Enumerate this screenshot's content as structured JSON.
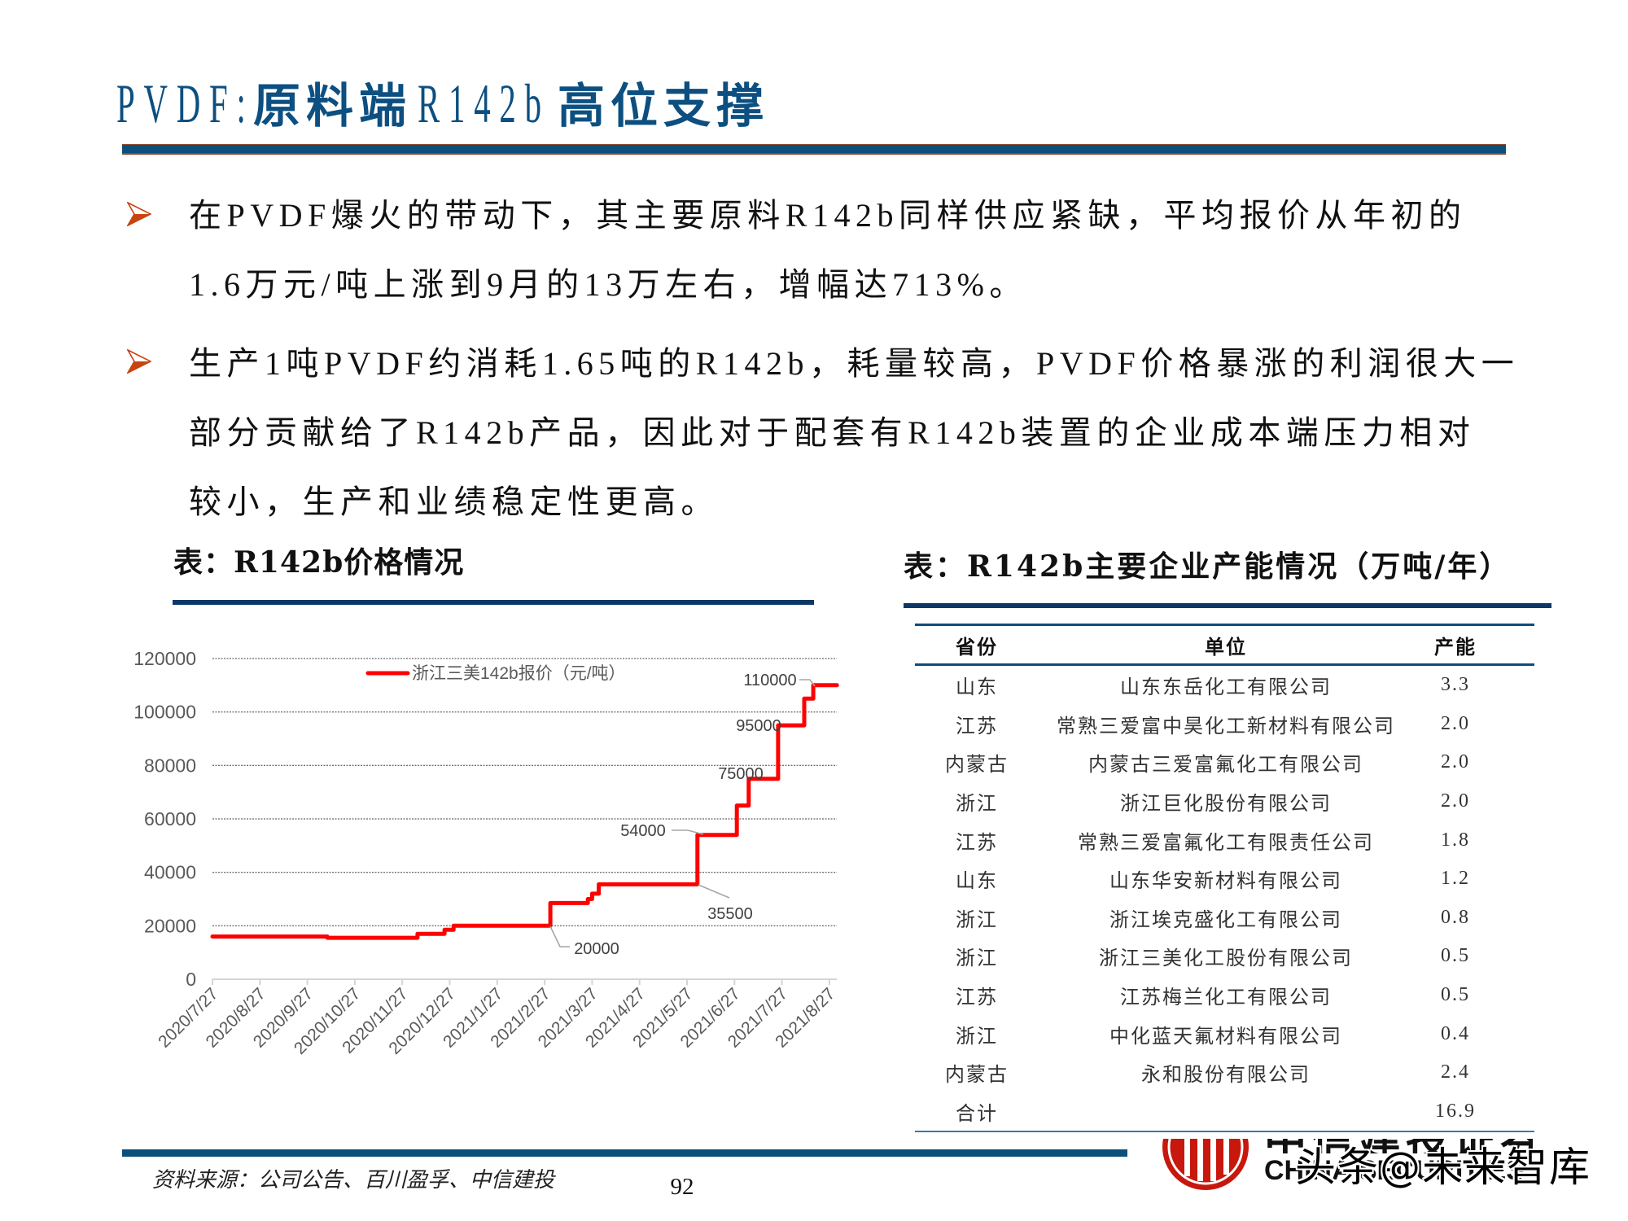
{
  "slide": {
    "title_parts": [
      "PVDF:",
      "原料端",
      "R142b",
      "高位支撑"
    ],
    "bullets": [
      {
        "icon": "arrow-bullet-icon",
        "lines": [
          "在PVDF爆火的带动下，其主要原料R142b同样供应紧缺，平均报价从年初的",
          "1.6万元/吨上涨到9月的13万左右，增幅达713%。"
        ]
      },
      {
        "icon": "arrow-bullet-icon",
        "lines": [
          "生产1吨PVDF约消耗1.65吨的R142b，耗量较高，PVDF价格暴涨的利润很大一",
          "部分贡献给了R142b产品，因此对于配套有R142b装置的企业成本端压力相对",
          "较小，生产和业绩稳定性更高。"
        ]
      }
    ],
    "source": "资料来源：公司公告、百川盈孚、中信建投",
    "page_number": "92"
  },
  "left_panel": {
    "title": "表：R142b价格情况"
  },
  "right_panel": {
    "title": "表：R142b主要企业产能情况（万吨/年）",
    "table": {
      "headers": [
        "省份",
        "单位",
        "产能"
      ],
      "rows": [
        [
          "山东",
          "山东东岳化工有限公司",
          "3.3"
        ],
        [
          "江苏",
          "常熟三爱富中昊化工新材料有限公司",
          "2.0"
        ],
        [
          "内蒙古",
          "内蒙古三爱富氟化工有限公司",
          "2.0"
        ],
        [
          "浙江",
          "浙江巨化股份有限公司",
          "2.0"
        ],
        [
          "江苏",
          "常熟三爱富氟化工有限责任公司",
          "1.8"
        ],
        [
          "山东",
          "山东华安新材料有限公司",
          "1.2"
        ],
        [
          "浙江",
          "浙江埃克盛化工有限公司",
          "0.8"
        ],
        [
          "浙江",
          "浙江三美化工股份有限公司",
          "0.5"
        ],
        [
          "江苏",
          "江苏梅兰化工有限公司",
          "0.5"
        ],
        [
          "浙江",
          "中化蓝天氟材料有限公司",
          "0.4"
        ],
        [
          "内蒙古",
          "永和股份有限公司",
          "2.4"
        ],
        [
          "合计",
          "",
          "16.9"
        ]
      ]
    }
  },
  "branding": {
    "logo_text_cn": "中信建投证券",
    "logo_text_en": "CHINA SECURITIES",
    "watermark": "头条@未来智库"
  },
  "colors": {
    "title_blue": "#0c4f80",
    "header_bar_blue": "#0b4f7c",
    "header_bar_brown": "#8b4a2b",
    "bullet_orange": "#c8430e",
    "underline_navy": "#0b3866",
    "series_red": "#ff0000",
    "logo_red": "#c8170d"
  },
  "chart_data": {
    "type": "line",
    "title": "表：R142b价格情况",
    "xlabel": "",
    "ylabel": "",
    "categories": [
      "2020/7/27",
      "2020/8/27",
      "2020/9/27",
      "2020/10/27",
      "2020/11/27",
      "2020/12/27",
      "2021/1/27",
      "2021/2/27",
      "2021/3/27",
      "2021/4/27",
      "2021/5/27",
      "2021/6/27",
      "2021/7/27",
      "2021/8/27"
    ],
    "ylim": [
      0,
      120000
    ],
    "yticks": [
      0,
      20000,
      40000,
      60000,
      80000,
      100000,
      120000
    ],
    "grid": true,
    "legend": {
      "position": "top",
      "entries": [
        "浙江三美142b报价（元/吨）"
      ]
    },
    "series": [
      {
        "name": "浙江三美142b报价（元/吨）",
        "color": "#ff0000",
        "step": true,
        "points": [
          {
            "date": "2020/7/27",
            "m": 0,
            "value": 16000
          },
          {
            "date": "2020/10/10",
            "m": 2.42,
            "value": 15500
          },
          {
            "date": "2020/12/7",
            "m": 4.32,
            "value": 17000
          },
          {
            "date": "2020/12/24",
            "m": 4.89,
            "value": 18500
          },
          {
            "date": "2020/12/30",
            "m": 5.08,
            "value": 20000
          },
          {
            "date": "2021/3/2",
            "m": 7.12,
            "value": 28500
          },
          {
            "date": "2021/3/24",
            "m": 7.91,
            "value": 30000
          },
          {
            "date": "2021/3/27",
            "m": 8.0,
            "value": 32000
          },
          {
            "date": "2021/3/31",
            "m": 8.14,
            "value": 35500
          },
          {
            "date": "2021/6/2",
            "m": 10.22,
            "value": 54000
          },
          {
            "date": "2021/6/28",
            "m": 11.05,
            "value": 65000
          },
          {
            "date": "2021/7/6",
            "m": 11.3,
            "value": 75000
          },
          {
            "date": "2021/7/24",
            "m": 11.92,
            "value": 95000
          },
          {
            "date": "2021/8/10",
            "m": 12.47,
            "value": 105000
          },
          {
            "date": "2021/8/16",
            "m": 12.66,
            "value": 110000
          },
          {
            "date": "2021/9/1",
            "m": 13.16,
            "value": 110000
          }
        ]
      }
    ],
    "annotations": [
      {
        "label": "110000",
        "value": 110000
      },
      {
        "label": "95000",
        "value": 95000
      },
      {
        "label": "75000",
        "value": 75000
      },
      {
        "label": "54000",
        "value": 54000
      },
      {
        "label": "35500",
        "value": 35500
      },
      {
        "label": "20000",
        "value": 20000
      }
    ]
  }
}
